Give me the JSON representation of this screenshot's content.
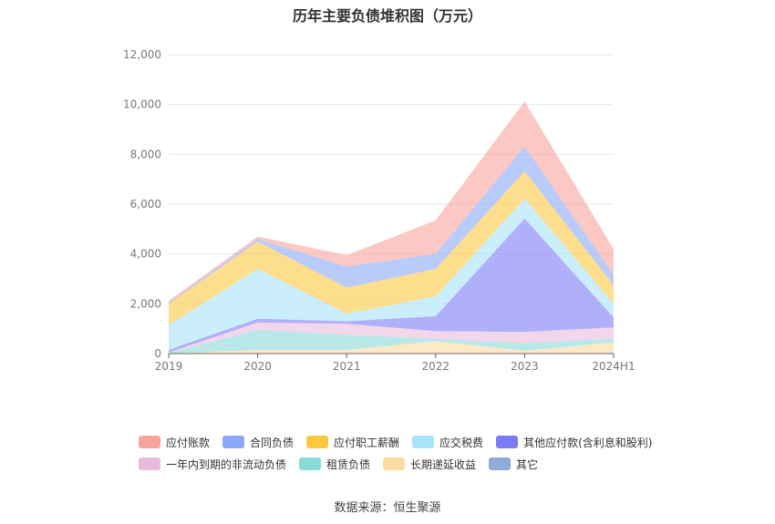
{
  "title": "历年主要负债堆积图（万元）",
  "source": "数据来源：恒生聚源",
  "chart_data": {
    "type": "area",
    "stacked": true,
    "x": [
      "2019",
      "2020",
      "2021",
      "2022",
      "2023",
      "2024H1"
    ],
    "ylim": [
      0,
      12000
    ],
    "yticks": [
      "0",
      "2,000",
      "4,000",
      "6,000",
      "8,000",
      "10,000",
      "12,000"
    ],
    "yticks_values": [
      0,
      2000,
      4000,
      6000,
      8000,
      10000,
      12000
    ],
    "grid": true,
    "legend_position": "bottom",
    "series": [
      {
        "name": "长期递延收益",
        "color": "#FDDBA0",
        "values": [
          0,
          150,
          150,
          500,
          120,
          450
        ]
      },
      {
        "name": "租赁负债",
        "color": "#88D9D9",
        "values": [
          30,
          800,
          600,
          100,
          300,
          150
        ]
      },
      {
        "name": "一年内到期的非流动负债",
        "color": "#E9BADF",
        "values": [
          20,
          300,
          450,
          300,
          450,
          450
        ]
      },
      {
        "name": "其他应付款(含利息和股利)",
        "color": "#7B7BF7",
        "values": [
          100,
          150,
          100,
          600,
          4550,
          400
        ]
      },
      {
        "name": "应交税费",
        "color": "#A9E2FB",
        "values": [
          1000,
          2000,
          300,
          800,
          800,
          550
        ]
      },
      {
        "name": "应付职工薪酬",
        "color": "#FBC840",
        "values": [
          850,
          1100,
          1050,
          1100,
          1100,
          750
        ]
      },
      {
        "name": "合同负债",
        "color": "#8BA8F9",
        "values": [
          40,
          100,
          850,
          600,
          1000,
          400
        ]
      },
      {
        "name": "应付账款",
        "color": "#F8A39B",
        "values": [
          80,
          100,
          450,
          1350,
          1800,
          1050
        ]
      },
      {
        "name": "其它",
        "color": "#8FABD9",
        "values": [
          0,
          0,
          0,
          0,
          0,
          0
        ]
      }
    ],
    "legend_rows": [
      [
        "应付账款",
        "合同负债",
        "应付职工薪酬",
        "应交税费",
        "其他应付款(含利息和股利)"
      ],
      [
        "一年内到期的非流动负债",
        "租赁负债",
        "长期递延收益",
        "其它"
      ]
    ]
  }
}
